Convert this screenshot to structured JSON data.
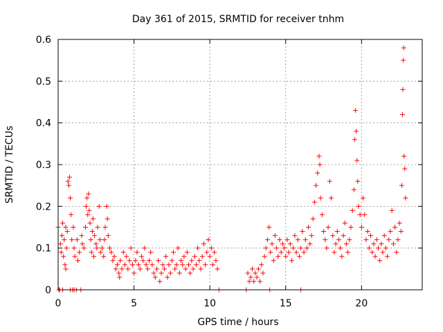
{
  "chart_data": {
    "type": "scatter",
    "title": "Day 361 of 2015, SRMTID for receiver tnhm",
    "xlabel": "GPS time / hours",
    "ylabel": "SRMTID / TECUs",
    "xlim": [
      0,
      24
    ],
    "ylim": [
      0,
      0.6
    ],
    "xticks": [
      0,
      5,
      10,
      15,
      20
    ],
    "yticks": [
      0,
      0.1,
      0.2,
      0.3,
      0.4,
      0.5,
      0.6
    ],
    "xtick_labels": [
      "0",
      "5",
      "10",
      "15",
      "20"
    ],
    "ytick_labels": [
      "0",
      "0.1",
      "0.2",
      "0.3",
      "0.4",
      "0.5",
      "0.6"
    ],
    "grid": true,
    "marker": "+",
    "color": "#ff0000",
    "series": [
      {
        "name": "tnhm",
        "points": [
          [
            0.0,
            0.15
          ],
          [
            0.1,
            0.0
          ],
          [
            0.15,
            0.11
          ],
          [
            0.2,
            0.09
          ],
          [
            0.25,
            0.13
          ],
          [
            0.3,
            0.0
          ],
          [
            0.3,
            0.16
          ],
          [
            0.35,
            0.08
          ],
          [
            0.4,
            0.12
          ],
          [
            0.45,
            0.06
          ],
          [
            0.5,
            0.15
          ],
          [
            0.5,
            0.05
          ],
          [
            0.55,
            0.1
          ],
          [
            0.6,
            0.14
          ],
          [
            0.65,
            0.26
          ],
          [
            0.7,
            0.25
          ],
          [
            0.75,
            0.27
          ],
          [
            0.8,
            0.22
          ],
          [
            0.85,
            0.18
          ],
          [
            0.9,
            0.12
          ],
          [
            0.95,
            0.0
          ],
          [
            1.0,
            0.15
          ],
          [
            1.05,
            0.1
          ],
          [
            1.1,
            0.08
          ],
          [
            1.2,
            0.0
          ],
          [
            1.25,
            0.12
          ],
          [
            1.3,
            0.07
          ],
          [
            1.4,
            0.09
          ],
          [
            1.5,
            0.0
          ],
          [
            1.55,
            0.13
          ],
          [
            1.6,
            0.11
          ],
          [
            1.7,
            0.1
          ],
          [
            1.8,
            0.15
          ],
          [
            1.85,
            0.2
          ],
          [
            1.9,
            0.22
          ],
          [
            1.95,
            0.18
          ],
          [
            2.0,
            0.23
          ],
          [
            2.05,
            0.19
          ],
          [
            2.1,
            0.16
          ],
          [
            2.15,
            0.12
          ],
          [
            2.2,
            0.09
          ],
          [
            2.25,
            0.14
          ],
          [
            2.3,
            0.17
          ],
          [
            2.35,
            0.08
          ],
          [
            2.4,
            0.13
          ],
          [
            2.5,
            0.11
          ],
          [
            2.55,
            0.1
          ],
          [
            2.6,
            0.15
          ],
          [
            2.7,
            0.2
          ],
          [
            2.75,
            0.12
          ],
          [
            2.8,
            0.09
          ],
          [
            2.9,
            0.1
          ],
          [
            3.0,
            0.08
          ],
          [
            3.05,
            0.12
          ],
          [
            3.1,
            0.15
          ],
          [
            3.2,
            0.2
          ],
          [
            3.25,
            0.17
          ],
          [
            3.3,
            0.13
          ],
          [
            3.4,
            0.1
          ],
          [
            3.5,
            0.09
          ],
          [
            3.6,
            0.07
          ],
          [
            3.7,
            0.08
          ],
          [
            3.8,
            0.05
          ],
          [
            3.9,
            0.06
          ],
          [
            4.0,
            0.04
          ],
          [
            4.05,
            0.03
          ],
          [
            4.1,
            0.07
          ],
          [
            4.2,
            0.05
          ],
          [
            4.3,
            0.09
          ],
          [
            4.4,
            0.06
          ],
          [
            4.5,
            0.08
          ],
          [
            4.6,
            0.05
          ],
          [
            4.7,
            0.07
          ],
          [
            4.8,
            0.1
          ],
          [
            4.9,
            0.06
          ],
          [
            5.0,
            0.04
          ],
          [
            5.1,
            0.07
          ],
          [
            5.2,
            0.09
          ],
          [
            5.3,
            0.06
          ],
          [
            5.4,
            0.05
          ],
          [
            5.5,
            0.08
          ],
          [
            5.6,
            0.07
          ],
          [
            5.7,
            0.1
          ],
          [
            5.8,
            0.06
          ],
          [
            5.9,
            0.05
          ],
          [
            6.0,
            0.07
          ],
          [
            6.1,
            0.09
          ],
          [
            6.2,
            0.06
          ],
          [
            6.3,
            0.04
          ],
          [
            6.4,
            0.03
          ],
          [
            6.5,
            0.05
          ],
          [
            6.6,
            0.07
          ],
          [
            6.7,
            0.02
          ],
          [
            6.8,
            0.04
          ],
          [
            6.9,
            0.06
          ],
          [
            7.0,
            0.05
          ],
          [
            7.1,
            0.08
          ],
          [
            7.2,
            0.03
          ],
          [
            7.3,
            0.06
          ],
          [
            7.4,
            0.04
          ],
          [
            7.5,
            0.07
          ],
          [
            7.6,
            0.09
          ],
          [
            7.7,
            0.05
          ],
          [
            7.8,
            0.06
          ],
          [
            7.9,
            0.1
          ],
          [
            8.0,
            0.04
          ],
          [
            8.1,
            0.07
          ],
          [
            8.2,
            0.06
          ],
          [
            8.3,
            0.08
          ],
          [
            8.4,
            0.05
          ],
          [
            8.5,
            0.09
          ],
          [
            8.6,
            0.06
          ],
          [
            8.7,
            0.04
          ],
          [
            8.8,
            0.07
          ],
          [
            8.9,
            0.05
          ],
          [
            9.0,
            0.08
          ],
          [
            9.1,
            0.06
          ],
          [
            9.2,
            0.1
          ],
          [
            9.3,
            0.07
          ],
          [
            9.4,
            0.05
          ],
          [
            9.5,
            0.08
          ],
          [
            9.6,
            0.11
          ],
          [
            9.7,
            0.06
          ],
          [
            9.8,
            0.09
          ],
          [
            9.9,
            0.12
          ],
          [
            10.0,
            0.08
          ],
          [
            10.1,
            0.1
          ],
          [
            10.2,
            0.06
          ],
          [
            10.3,
            0.09
          ],
          [
            10.4,
            0.07
          ],
          [
            10.5,
            0.05
          ],
          [
            10.6,
            0.0
          ],
          [
            12.4,
            0.0
          ],
          [
            12.5,
            0.04
          ],
          [
            12.6,
            0.02
          ],
          [
            12.7,
            0.03
          ],
          [
            12.8,
            0.05
          ],
          [
            12.9,
            0.02
          ],
          [
            13.0,
            0.04
          ],
          [
            13.1,
            0.03
          ],
          [
            13.2,
            0.05
          ],
          [
            13.3,
            0.02
          ],
          [
            13.4,
            0.06
          ],
          [
            13.5,
            0.04
          ],
          [
            13.6,
            0.08
          ],
          [
            13.7,
            0.1
          ],
          [
            13.8,
            0.12
          ],
          [
            13.9,
            0.15
          ],
          [
            14.0,
            0.09
          ],
          [
            14.1,
            0.11
          ],
          [
            14.2,
            0.07
          ],
          [
            14.3,
            0.13
          ],
          [
            14.4,
            0.1
          ],
          [
            14.5,
            0.08
          ],
          [
            14.6,
            0.12
          ],
          [
            14.7,
            0.09
          ],
          [
            14.8,
            0.11
          ],
          [
            14.9,
            0.1
          ],
          [
            15.0,
            0.08
          ],
          [
            15.1,
            0.12
          ],
          [
            15.2,
            0.09
          ],
          [
            15.3,
            0.11
          ],
          [
            15.4,
            0.07
          ],
          [
            15.5,
            0.1
          ],
          [
            15.6,
            0.13
          ],
          [
            15.7,
            0.09
          ],
          [
            15.8,
            0.12
          ],
          [
            15.9,
            0.08
          ],
          [
            16.0,
            0.1
          ],
          [
            16.1,
            0.14
          ],
          [
            16.2,
            0.09
          ],
          [
            16.3,
            0.12
          ],
          [
            16.4,
            0.1
          ],
          [
            16.5,
            0.15
          ],
          [
            16.6,
            0.11
          ],
          [
            16.7,
            0.13
          ],
          [
            16.8,
            0.17
          ],
          [
            16.9,
            0.21
          ],
          [
            17.0,
            0.25
          ],
          [
            17.1,
            0.28
          ],
          [
            17.2,
            0.32
          ],
          [
            17.25,
            0.3
          ],
          [
            17.3,
            0.22
          ],
          [
            17.4,
            0.18
          ],
          [
            17.5,
            0.14
          ],
          [
            17.6,
            0.12
          ],
          [
            17.7,
            0.1
          ],
          [
            17.8,
            0.15
          ],
          [
            17.9,
            0.26
          ],
          [
            18.0,
            0.22
          ],
          [
            18.1,
            0.13
          ],
          [
            18.2,
            0.09
          ],
          [
            18.3,
            0.11
          ],
          [
            18.4,
            0.14
          ],
          [
            18.5,
            0.12
          ],
          [
            18.6,
            0.1
          ],
          [
            18.7,
            0.08
          ],
          [
            18.8,
            0.13
          ],
          [
            18.9,
            0.16
          ],
          [
            19.0,
            0.11
          ],
          [
            19.1,
            0.09
          ],
          [
            19.2,
            0.12
          ],
          [
            19.3,
            0.15
          ],
          [
            19.4,
            0.19
          ],
          [
            19.5,
            0.24
          ],
          [
            19.55,
            0.36
          ],
          [
            19.6,
            0.43
          ],
          [
            19.65,
            0.38
          ],
          [
            19.7,
            0.31
          ],
          [
            19.75,
            0.26
          ],
          [
            19.8,
            0.2
          ],
          [
            19.9,
            0.18
          ],
          [
            20.0,
            0.15
          ],
          [
            20.1,
            0.22
          ],
          [
            20.2,
            0.18
          ],
          [
            20.3,
            0.12
          ],
          [
            20.4,
            0.14
          ],
          [
            20.5,
            0.1
          ],
          [
            20.6,
            0.13
          ],
          [
            20.7,
            0.09
          ],
          [
            20.8,
            0.11
          ],
          [
            20.9,
            0.08
          ],
          [
            21.0,
            0.12
          ],
          [
            21.1,
            0.1
          ],
          [
            21.2,
            0.07
          ],
          [
            21.3,
            0.11
          ],
          [
            21.4,
            0.09
          ],
          [
            21.5,
            0.13
          ],
          [
            21.6,
            0.1
          ],
          [
            21.7,
            0.08
          ],
          [
            21.8,
            0.12
          ],
          [
            21.9,
            0.14
          ],
          [
            22.0,
            0.19
          ],
          [
            22.1,
            0.11
          ],
          [
            22.2,
            0.15
          ],
          [
            22.3,
            0.09
          ],
          [
            22.4,
            0.12
          ],
          [
            22.5,
            0.16
          ],
          [
            22.6,
            0.14
          ],
          [
            22.65,
            0.25
          ],
          [
            22.7,
            0.42
          ],
          [
            22.72,
            0.48
          ],
          [
            22.75,
            0.55
          ],
          [
            22.78,
            0.58
          ],
          [
            22.8,
            0.32
          ],
          [
            22.85,
            0.29
          ],
          [
            22.9,
            0.22
          ],
          [
            0.05,
            0.0
          ],
          [
            0.8,
            0.0
          ],
          [
            1.05,
            0.0
          ],
          [
            13.95,
            0.0
          ],
          [
            16.0,
            0.0
          ]
        ]
      }
    ]
  }
}
